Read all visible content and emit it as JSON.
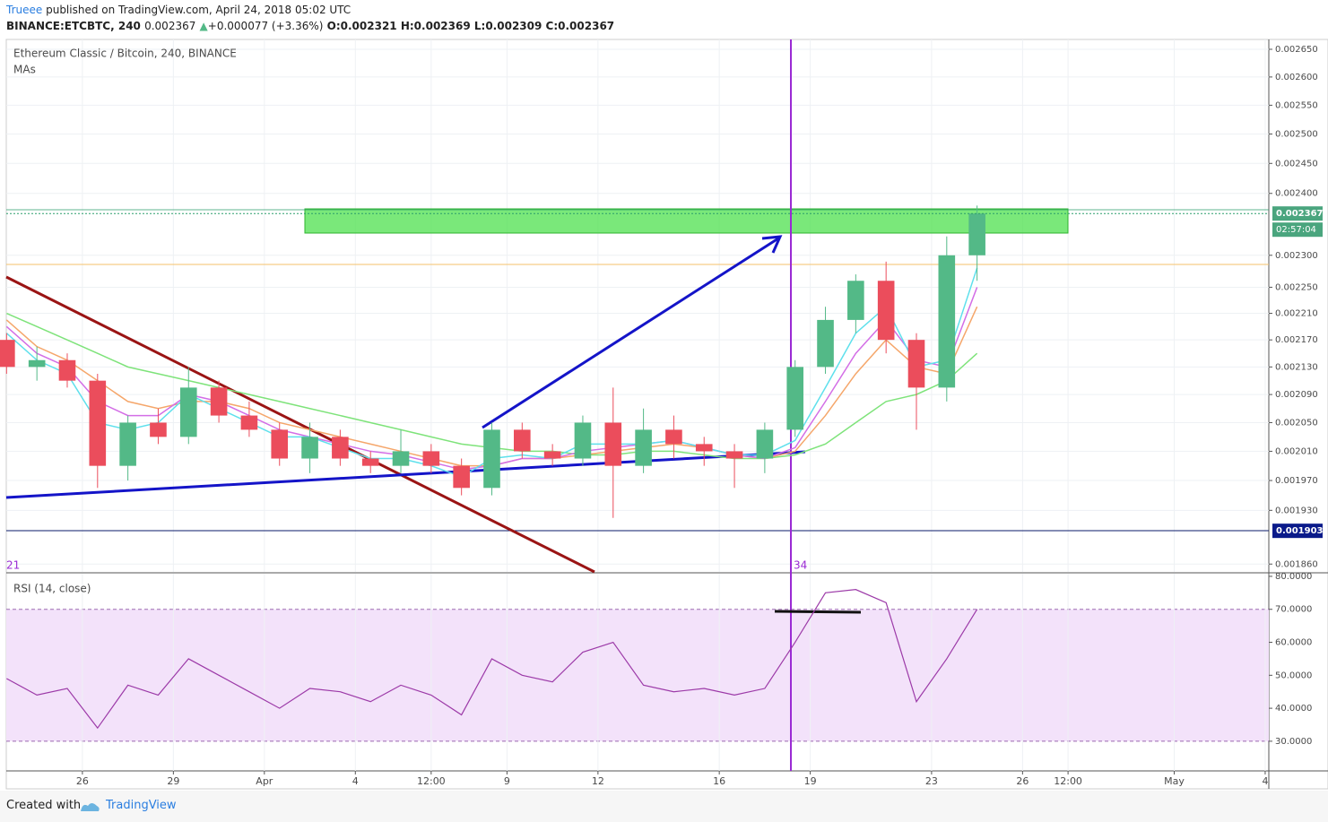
{
  "header": {
    "author": "Trueee",
    "published": "published on TradingView.com, April 24, 2018 05:02 UTC",
    "symbol": "BINANCE:ETCBTC, 240",
    "last": "0.002367",
    "change_arrow": "▲",
    "change": "+0.000077 (+3.36%)",
    "open": "O:0.002321",
    "high": "H:0.002369",
    "low": "L:0.002309",
    "close": "C:0.002367"
  },
  "footer": {
    "created_with": "Created with",
    "brand": "TradingView"
  },
  "chart_data": {
    "type": "candlestick",
    "title": "Ethereum Classic / Bitcoin, 240, BINANCE",
    "indicator": "MAs",
    "log_scale": true,
    "grid": true,
    "x": [
      23.5,
      24.5,
      25.5,
      26.5,
      27.5,
      28.5,
      29.5,
      30.5,
      31.5,
      32.5,
      33.5,
      34.5,
      35.5,
      36.5,
      37.5,
      38.5,
      39.5,
      40.5,
      41.5,
      42.5,
      43.5,
      44.5,
      45.5,
      46.5,
      47.5,
      48.5,
      49.5,
      50.5,
      51.5,
      52.5,
      53.5,
      54.5,
      55.5
    ],
    "open": [
      0.00217,
      0.00213,
      0.00214,
      0.00211,
      0.00199,
      0.00205,
      0.00203,
      0.0021,
      0.00206,
      0.00204,
      0.002,
      0.00203,
      0.002,
      0.00199,
      0.00201,
      0.00199,
      0.00196,
      0.00204,
      0.00201,
      0.002,
      0.00205,
      0.00199,
      0.00204,
      0.00202,
      0.00201,
      0.002,
      0.00204,
      0.00213,
      0.0022,
      0.00226,
      0.00217,
      0.0021,
      0.0023
    ],
    "high": [
      0.00218,
      0.00216,
      0.00215,
      0.00212,
      0.00206,
      0.00207,
      0.00213,
      0.00211,
      0.00208,
      0.00205,
      0.00205,
      0.00204,
      0.00201,
      0.00204,
      0.00202,
      0.002,
      0.00205,
      0.00205,
      0.00202,
      0.00206,
      0.0021,
      0.00207,
      0.00206,
      0.00203,
      0.00202,
      0.00205,
      0.00214,
      0.00222,
      0.00227,
      0.00229,
      0.00218,
      0.00233,
      0.00238
    ],
    "low": [
      0.00212,
      0.00211,
      0.0021,
      0.00196,
      0.00197,
      0.00202,
      0.00202,
      0.00205,
      0.00203,
      0.00199,
      0.00198,
      0.00199,
      0.00198,
      0.00198,
      0.00198,
      0.00195,
      0.00195,
      0.002,
      0.00199,
      0.00199,
      0.00192,
      0.00198,
      0.002,
      0.00199,
      0.00196,
      0.00198,
      0.00203,
      0.00212,
      0.00218,
      0.00215,
      0.00204,
      0.00208,
      0.00226
    ],
    "close": [
      0.00213,
      0.00214,
      0.00211,
      0.00199,
      0.00205,
      0.00203,
      0.0021,
      0.00206,
      0.00204,
      0.002,
      0.00203,
      0.002,
      0.00199,
      0.00201,
      0.00199,
      0.00196,
      0.00204,
      0.00201,
      0.002,
      0.00205,
      0.00199,
      0.00204,
      0.00202,
      0.00201,
      0.002,
      0.00204,
      0.00213,
      0.0022,
      0.00226,
      0.00217,
      0.0021,
      0.0023,
      0.002367
    ],
    "up_color": "#53b987",
    "down_color": "#eb4d5c",
    "ma_series": [
      {
        "color": "#7ee37a",
        "values": [
          0.00221,
          0.00219,
          0.00217,
          0.00215,
          0.00213,
          0.00212,
          0.00211,
          0.0021,
          0.00209,
          0.00208,
          0.00207,
          0.00206,
          0.00205,
          0.00204,
          0.00203,
          0.00202,
          0.002015,
          0.00201,
          0.00201,
          0.002005,
          0.002005,
          0.00201,
          0.00201,
          0.002005,
          0.002,
          0.002,
          0.002005,
          0.00202,
          0.00205,
          0.00208,
          0.00209,
          0.00211,
          0.00215
        ]
      },
      {
        "color": "#f5a66a",
        "values": [
          0.0022,
          0.00216,
          0.00214,
          0.00211,
          0.00208,
          0.00207,
          0.00208,
          0.00208,
          0.00207,
          0.00205,
          0.00204,
          0.00203,
          0.00202,
          0.00201,
          0.002,
          0.00199,
          0.00199,
          0.002,
          0.002,
          0.002005,
          0.00201,
          0.002015,
          0.00202,
          0.002015,
          0.002005,
          0.002,
          0.00201,
          0.00206,
          0.00212,
          0.00217,
          0.00213,
          0.00212,
          0.00222
        ]
      },
      {
        "color": "#d36ee6",
        "values": [
          0.00219,
          0.00215,
          0.00213,
          0.00208,
          0.00206,
          0.00206,
          0.00209,
          0.00208,
          0.00206,
          0.00204,
          0.00203,
          0.00202,
          0.00201,
          0.002005,
          0.001995,
          0.001985,
          0.00199,
          0.002,
          0.002,
          0.00201,
          0.002015,
          0.00202,
          0.002025,
          0.002015,
          0.002005,
          0.002,
          0.002015,
          0.00208,
          0.00215,
          0.0022,
          0.00214,
          0.00213,
          0.00225
        ]
      },
      {
        "color": "#5ee0ec",
        "values": [
          0.00218,
          0.00214,
          0.00212,
          0.00205,
          0.00204,
          0.00205,
          0.00209,
          0.00207,
          0.00205,
          0.00203,
          0.00203,
          0.002015,
          0.002,
          0.002,
          0.00199,
          0.001975,
          0.002,
          0.002005,
          0.002,
          0.00202,
          0.00202,
          0.00202,
          0.002025,
          0.002015,
          0.002005,
          0.002005,
          0.002025,
          0.0021,
          0.00218,
          0.00222,
          0.00213,
          0.00214,
          0.00228
        ]
      }
    ],
    "xlim": [
      23.49,
      65.12
    ],
    "xticks": [
      26,
      29,
      {
        "value": 32,
        "label": "Apr"
      },
      {
        "value": 35,
        "label": "4"
      },
      {
        "value": 37.5,
        "label": "12:00"
      },
      {
        "value": 40,
        "label": "9"
      },
      {
        "value": 43,
        "label": "12"
      },
      {
        "value": 47,
        "label": "16"
      },
      {
        "value": 50,
        "label": "19"
      },
      {
        "value": 54,
        "label": "23"
      },
      {
        "value": 57,
        "label": "26"
      },
      {
        "value": 58.5,
        "label": "12:00"
      },
      {
        "value": 62,
        "label": "May"
      },
      {
        "value": 65,
        "label": "4"
      }
    ],
    "ylim": [
      0.00185,
      0.002668
    ],
    "yticks": [
      {
        "value": 0.00265,
        "label": "0.002650"
      },
      {
        "value": 0.0026,
        "label": "0.002600"
      },
      {
        "value": 0.00255,
        "label": "0.002550"
      },
      {
        "value": 0.0025,
        "label": "0.002500"
      },
      {
        "value": 0.00245,
        "label": "0.002450"
      },
      {
        "value": 0.0024,
        "label": "0.002400"
      },
      {
        "value": 0.0023,
        "label": "0.002300"
      },
      {
        "value": 0.00225,
        "label": "0.002250"
      },
      {
        "value": 0.00221,
        "label": "0.002210"
      },
      {
        "value": 0.00217,
        "label": "0.002170"
      },
      {
        "value": 0.00213,
        "label": "0.002130"
      },
      {
        "value": 0.00209,
        "label": "0.002090"
      },
      {
        "value": 0.00205,
        "label": "0.002050"
      },
      {
        "value": 0.00201,
        "label": "0.002010"
      },
      {
        "value": 0.00197,
        "label": "0.001970"
      },
      {
        "value": 0.00193,
        "label": "0.001930"
      },
      {
        "value": 0.00186,
        "label": "0.001860"
      }
    ],
    "last_price": 0.002367,
    "countdown": "02:57:04",
    "level_price": 0.001903,
    "annotations": [
      "21",
      "34"
    ],
    "rsi": {
      "title": "RSI (14, close)",
      "color": "#9c3aa8",
      "values": [
        49,
        44,
        46,
        34,
        47,
        44,
        55,
        50,
        45,
        40,
        46,
        45,
        42,
        47,
        44,
        38,
        55,
        50,
        48,
        57,
        60,
        47,
        45,
        46,
        44,
        46,
        60,
        75,
        76,
        72,
        42,
        55,
        70
      ],
      "ylim": [
        21,
        80.8
      ],
      "band": [
        30,
        70
      ],
      "yticks": [
        {
          "value": 80,
          "label": "80.0000"
        },
        {
          "value": 70,
          "label": "70.0000"
        },
        {
          "value": 60,
          "label": "60.0000"
        },
        {
          "value": 50,
          "label": "50.0000"
        },
        {
          "value": 40,
          "label": "40.0000"
        },
        {
          "value": 30,
          "label": "30.0000"
        }
      ]
    }
  }
}
